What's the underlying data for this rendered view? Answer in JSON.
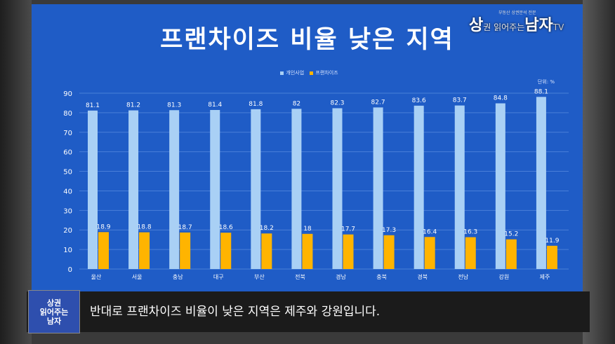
{
  "title": "프랜차이즈 비율 낮은 지역",
  "legend": {
    "series1": "개인사업",
    "series2": "프랜차이즈"
  },
  "unit": "단위: %",
  "watermark": {
    "small": "부동산 상권분석 전문",
    "main1": "상",
    "mid": "권 읽어주는",
    "main2": "남자",
    "tv": "TV"
  },
  "subtitle": "반대로 프랜차이즈 비율이 낮은 지역은 제주와 강원입니다.",
  "logo": {
    "line1": "상권",
    "line2": "읽어주는",
    "line3": "남자"
  },
  "colors": {
    "background": "#1f5cc6",
    "series1": "#a9d0f5",
    "series2": "#ffb400",
    "text": "#ffffff"
  },
  "chart_data": {
    "type": "bar",
    "title": "프랜차이즈 비율 낮은 지역",
    "categories": [
      "울산",
      "서울",
      "충남",
      "대구",
      "부산",
      "전북",
      "경남",
      "충북",
      "경북",
      "전남",
      "강원",
      "제주"
    ],
    "series": [
      {
        "name": "개인사업",
        "values": [
          81.1,
          81.2,
          81.3,
          81.4,
          81.8,
          82,
          82.3,
          82.7,
          83.6,
          83.7,
          84.8,
          88.1
        ]
      },
      {
        "name": "프랜차이즈",
        "values": [
          18.9,
          18.8,
          18.7,
          18.6,
          18.2,
          18,
          17.7,
          17.3,
          16.4,
          16.3,
          15.2,
          11.9
        ]
      }
    ],
    "ylim": [
      0,
      90
    ],
    "yticks": [
      0,
      10,
      20,
      30,
      40,
      50,
      60,
      70,
      80,
      90
    ],
    "grid": true,
    "legend_position": "top",
    "xlabel": "",
    "ylabel": ""
  }
}
